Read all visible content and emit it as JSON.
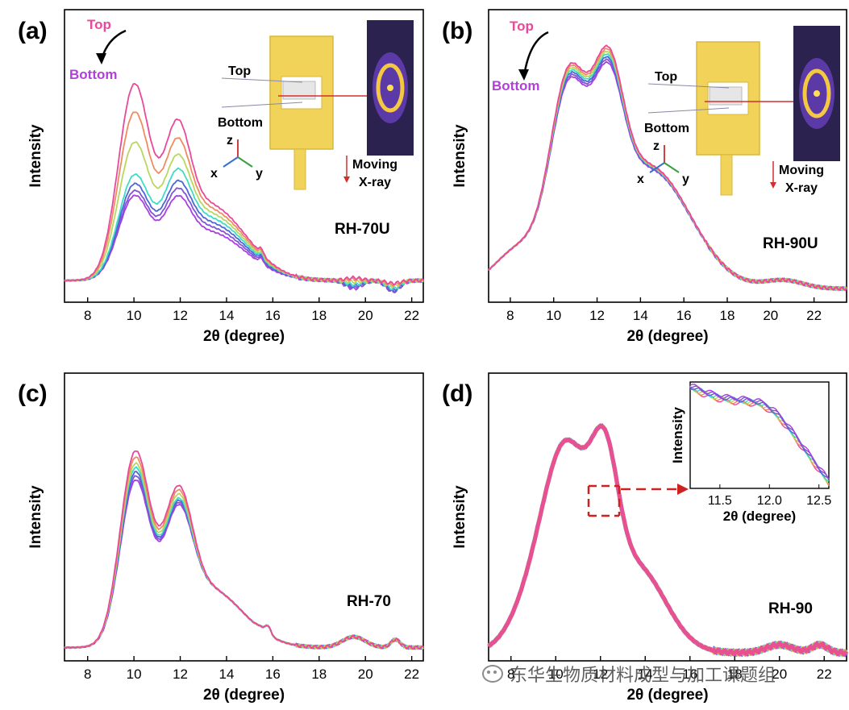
{
  "colors": [
    "#e8499a",
    "#ef8c5f",
    "#b9d75e",
    "#3fdcc4",
    "#4f65d6",
    "#7e56d6",
    "#a83fe0"
  ],
  "chart_data": [
    {
      "panel": "(a)",
      "type": "line",
      "label": "RH-70U",
      "xlabel": "2θ (degree)",
      "ylabel": "Intensity",
      "xlim": [
        7,
        22.5
      ],
      "xticks": [
        8,
        10,
        12,
        14,
        16,
        18,
        20,
        22
      ],
      "ylim": [
        0,
        1.08
      ],
      "series_order": "Top to Bottom",
      "peaks": [
        {
          "x": 10.0,
          "values": [
            0.96,
            0.83,
            0.69,
            0.54,
            0.5,
            0.47,
            0.45
          ]
        },
        {
          "x": 11.85,
          "values": [
            0.57,
            0.5,
            0.44,
            0.39,
            0.35,
            0.33,
            0.31
          ]
        },
        {
          "x": 19.5,
          "values": [
            0.09,
            0.085,
            0.075,
            0.065,
            0.06,
            0.055,
            0.05
          ]
        },
        {
          "x": 21.2,
          "values": [
            0.07,
            0.065,
            0.06,
            0.05,
            0.045,
            0.04,
            0.04
          ]
        }
      ],
      "baseline": 0.08,
      "inset": {
        "top_label": "Top",
        "bottom_label": "Bottom",
        "axes": [
          "z",
          "x",
          "y"
        ],
        "note": "Moving X-ray"
      },
      "arrow_labels": [
        "Top",
        "Bottom"
      ]
    },
    {
      "panel": "(b)",
      "type": "line",
      "label": "RH-90U",
      "xlabel": "2θ (degree)",
      "ylabel": "Intensity",
      "xlim": [
        7,
        23.5
      ],
      "xticks": [
        8,
        10,
        12,
        14,
        16,
        18,
        20,
        22
      ],
      "ylim": [
        0,
        1.08
      ],
      "peaks": [
        {
          "x": 10.7,
          "values": [
            0.96,
            0.95,
            0.94,
            0.93,
            0.92,
            0.91,
            0.9
          ]
        },
        {
          "x": 12.5,
          "values": [
            0.75,
            0.74,
            0.73,
            0.72,
            0.71,
            0.7,
            0.69
          ]
        },
        {
          "x": 20.6,
          "values": [
            0.08,
            0.08,
            0.08,
            0.08,
            0.08,
            0.08,
            0.08
          ]
        }
      ],
      "baseline": 0.05,
      "inset": {
        "top_label": "Top",
        "bottom_label": "Bottom",
        "axes": [
          "z",
          "x",
          "y"
        ],
        "note": "Moving X-ray"
      },
      "arrow_labels": [
        "Top",
        "Bottom"
      ]
    },
    {
      "panel": "(c)",
      "type": "line",
      "label": "RH-70",
      "xlabel": "2θ (degree)",
      "ylabel": "Intensity",
      "xlim": [
        7,
        22.5
      ],
      "xticks": [
        8,
        10,
        12,
        14,
        16,
        18,
        20,
        22
      ],
      "ylim": [
        0,
        1.08
      ],
      "peaks": [
        {
          "x": 10.05,
          "values": [
            0.96,
            0.93,
            0.9,
            0.88,
            0.86,
            0.84,
            0.82
          ]
        },
        {
          "x": 11.9,
          "values": [
            0.62,
            0.6,
            0.58,
            0.56,
            0.55,
            0.54,
            0.53
          ]
        },
        {
          "x": 15.5,
          "values": [
            0.06,
            0.06,
            0.06,
            0.06,
            0.06,
            0.06,
            0.06
          ]
        },
        {
          "x": 19.5,
          "values": [
            0.09,
            0.09,
            0.09,
            0.09,
            0.09,
            0.09,
            0.09
          ]
        }
      ],
      "baseline": 0.05
    },
    {
      "panel": "(d)",
      "type": "line",
      "label": "RH-90",
      "xlabel": "2θ (degree)",
      "ylabel": "Intensity",
      "xlim": [
        7,
        23
      ],
      "xticks": [
        8,
        10,
        12,
        14,
        16,
        18,
        20,
        22
      ],
      "ylim": [
        0,
        1.08
      ],
      "peaks": [
        {
          "x": 10.5,
          "values": [
            0.97,
            0.97,
            0.97,
            0.97,
            0.97,
            0.97,
            0.97
          ]
        },
        {
          "x": 12.2,
          "values": [
            0.62,
            0.62,
            0.62,
            0.62,
            0.62,
            0.62,
            0.62
          ]
        },
        {
          "x": 20.0,
          "values": [
            0.06,
            0.06,
            0.06,
            0.06,
            0.06,
            0.06,
            0.06
          ]
        }
      ],
      "baseline": 0.03,
      "inset": {
        "xlabel": "2θ (degree)",
        "ylabel": "Intensity",
        "xlim": [
          11.2,
          12.6
        ],
        "xticks": [
          11.5,
          12.0,
          12.5
        ]
      }
    }
  ],
  "watermark": "东华生物质材料成型与加工课题组"
}
